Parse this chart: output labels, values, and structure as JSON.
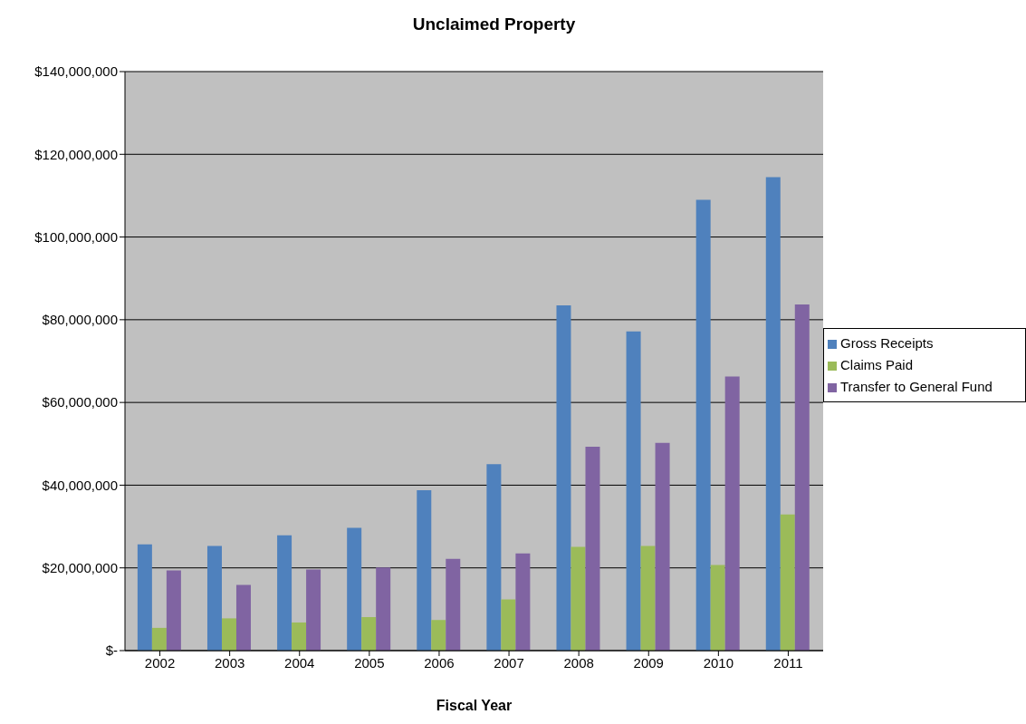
{
  "chart_data": {
    "type": "bar",
    "title": "Unclaimed Property",
    "xlabel": "Fiscal Year",
    "categories": [
      "2002",
      "2003",
      "2004",
      "2005",
      "2006",
      "2007",
      "2008",
      "2009",
      "2010",
      "2011"
    ],
    "series": [
      {
        "name": "Gross Receipts",
        "color": "#4f81bd",
        "values": [
          25700000,
          25300000,
          27900000,
          29700000,
          38800000,
          45100000,
          83500000,
          77200000,
          109000000,
          114500000
        ]
      },
      {
        "name": "Claims Paid",
        "color": "#9bbb59",
        "values": [
          5500000,
          7800000,
          6800000,
          8100000,
          7400000,
          12400000,
          25100000,
          25300000,
          20700000,
          32900000
        ]
      },
      {
        "name": "Transfer to General Fund",
        "color": "#8064a2",
        "values": [
          19400000,
          15900000,
          19600000,
          20100000,
          22200000,
          23500000,
          49300000,
          50200000,
          66300000,
          83700000
        ]
      }
    ],
    "ylim": [
      0,
      140000000
    ],
    "yticks": [
      {
        "value": 0,
        "label": "$-"
      },
      {
        "value": 20000000,
        "label": "$20,000,000"
      },
      {
        "value": 40000000,
        "label": "$40,000,000"
      },
      {
        "value": 60000000,
        "label": "$60,000,000"
      },
      {
        "value": 80000000,
        "label": "$80,000,000"
      },
      {
        "value": 100000000,
        "label": "$100,000,000"
      },
      {
        "value": 120000000,
        "label": "$120,000,000"
      },
      {
        "value": 140000000,
        "label": "$140,000,000"
      }
    ],
    "grid": "y",
    "legend": "right"
  }
}
